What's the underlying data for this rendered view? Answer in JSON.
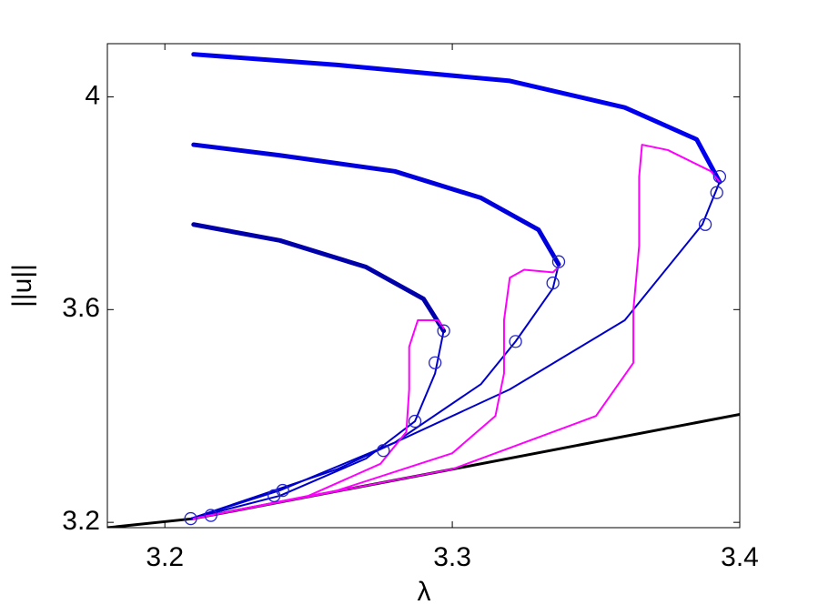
{
  "chart_data": {
    "type": "line",
    "xlabel": "λ",
    "ylabel": "||u||",
    "xlim": [
      3.18,
      3.4
    ],
    "ylim": [
      3.19,
      4.1
    ],
    "xticks": [
      3.2,
      3.3,
      3.4
    ],
    "yticks": [
      3.2,
      3.6,
      4
    ],
    "series": [
      {
        "color": "#000000",
        "width": 3,
        "x": [
          3.18,
          3.21,
          3.4
        ],
        "y": [
          3.19,
          3.207,
          3.403
        ]
      },
      {
        "color": "#0000cc",
        "width": 2,
        "x": [
          3.209,
          3.24,
          3.27,
          3.287,
          3.294,
          3.297
        ],
        "y": [
          3.207,
          3.25,
          3.32,
          3.39,
          3.48,
          3.56
        ]
      },
      {
        "color": "#0000aa",
        "width": 5,
        "x": [
          3.297,
          3.29,
          3.27,
          3.24,
          3.21
        ],
        "y": [
          3.56,
          3.62,
          3.68,
          3.73,
          3.76
        ]
      },
      {
        "color": "#0000cc",
        "width": 2,
        "x": [
          3.209,
          3.24,
          3.28,
          3.31,
          3.322,
          3.335,
          3.337
        ],
        "y": [
          3.207,
          3.26,
          3.35,
          3.46,
          3.54,
          3.64,
          3.685
        ]
      },
      {
        "color": "#0000dd",
        "width": 5,
        "x": [
          3.337,
          3.33,
          3.31,
          3.28,
          3.24,
          3.21
        ],
        "y": [
          3.685,
          3.75,
          3.81,
          3.86,
          3.89,
          3.91
        ]
      },
      {
        "color": "#0000cc",
        "width": 2,
        "x": [
          3.209,
          3.26,
          3.32,
          3.36,
          3.387,
          3.393
        ],
        "y": [
          3.207,
          3.3,
          3.45,
          3.58,
          3.76,
          3.84
        ]
      },
      {
        "color": "#0000ee",
        "width": 5,
        "x": [
          3.393,
          3.385,
          3.36,
          3.32,
          3.26,
          3.21
        ],
        "y": [
          3.84,
          3.92,
          3.98,
          4.03,
          4.06,
          4.08
        ]
      },
      {
        "color": "#ff00ff",
        "width": 2,
        "x": [
          3.21,
          3.25,
          3.275,
          3.284,
          3.285,
          3.285,
          3.288,
          3.295,
          3.297
        ],
        "y": [
          3.207,
          3.25,
          3.31,
          3.37,
          3.45,
          3.53,
          3.58,
          3.58,
          3.565
        ]
      },
      {
        "color": "#ff00ff",
        "width": 2,
        "x": [
          3.21,
          3.26,
          3.3,
          3.315,
          3.318,
          3.318,
          3.32,
          3.325,
          3.335,
          3.337
        ],
        "y": [
          3.207,
          3.26,
          3.33,
          3.4,
          3.48,
          3.58,
          3.66,
          3.675,
          3.67,
          3.68
        ]
      },
      {
        "color": "#ff00ff",
        "width": 2,
        "x": [
          3.21,
          3.3,
          3.35,
          3.363,
          3.363,
          3.365,
          3.365,
          3.366,
          3.375,
          3.39,
          3.393
        ],
        "y": [
          3.207,
          3.3,
          3.4,
          3.5,
          3.6,
          3.72,
          3.85,
          3.91,
          3.9,
          3.86,
          3.84
        ]
      },
      {
        "color": "#2222cc",
        "marker": "circle",
        "x": [
          3.209,
          3.216,
          3.238,
          3.241,
          3.276,
          3.287,
          3.294,
          3.297,
          3.322,
          3.335,
          3.337,
          3.388,
          3.392,
          3.393
        ],
        "y": [
          3.207,
          3.213,
          3.25,
          3.26,
          3.335,
          3.39,
          3.5,
          3.56,
          3.54,
          3.65,
          3.69,
          3.76,
          3.82,
          3.85
        ]
      }
    ]
  }
}
